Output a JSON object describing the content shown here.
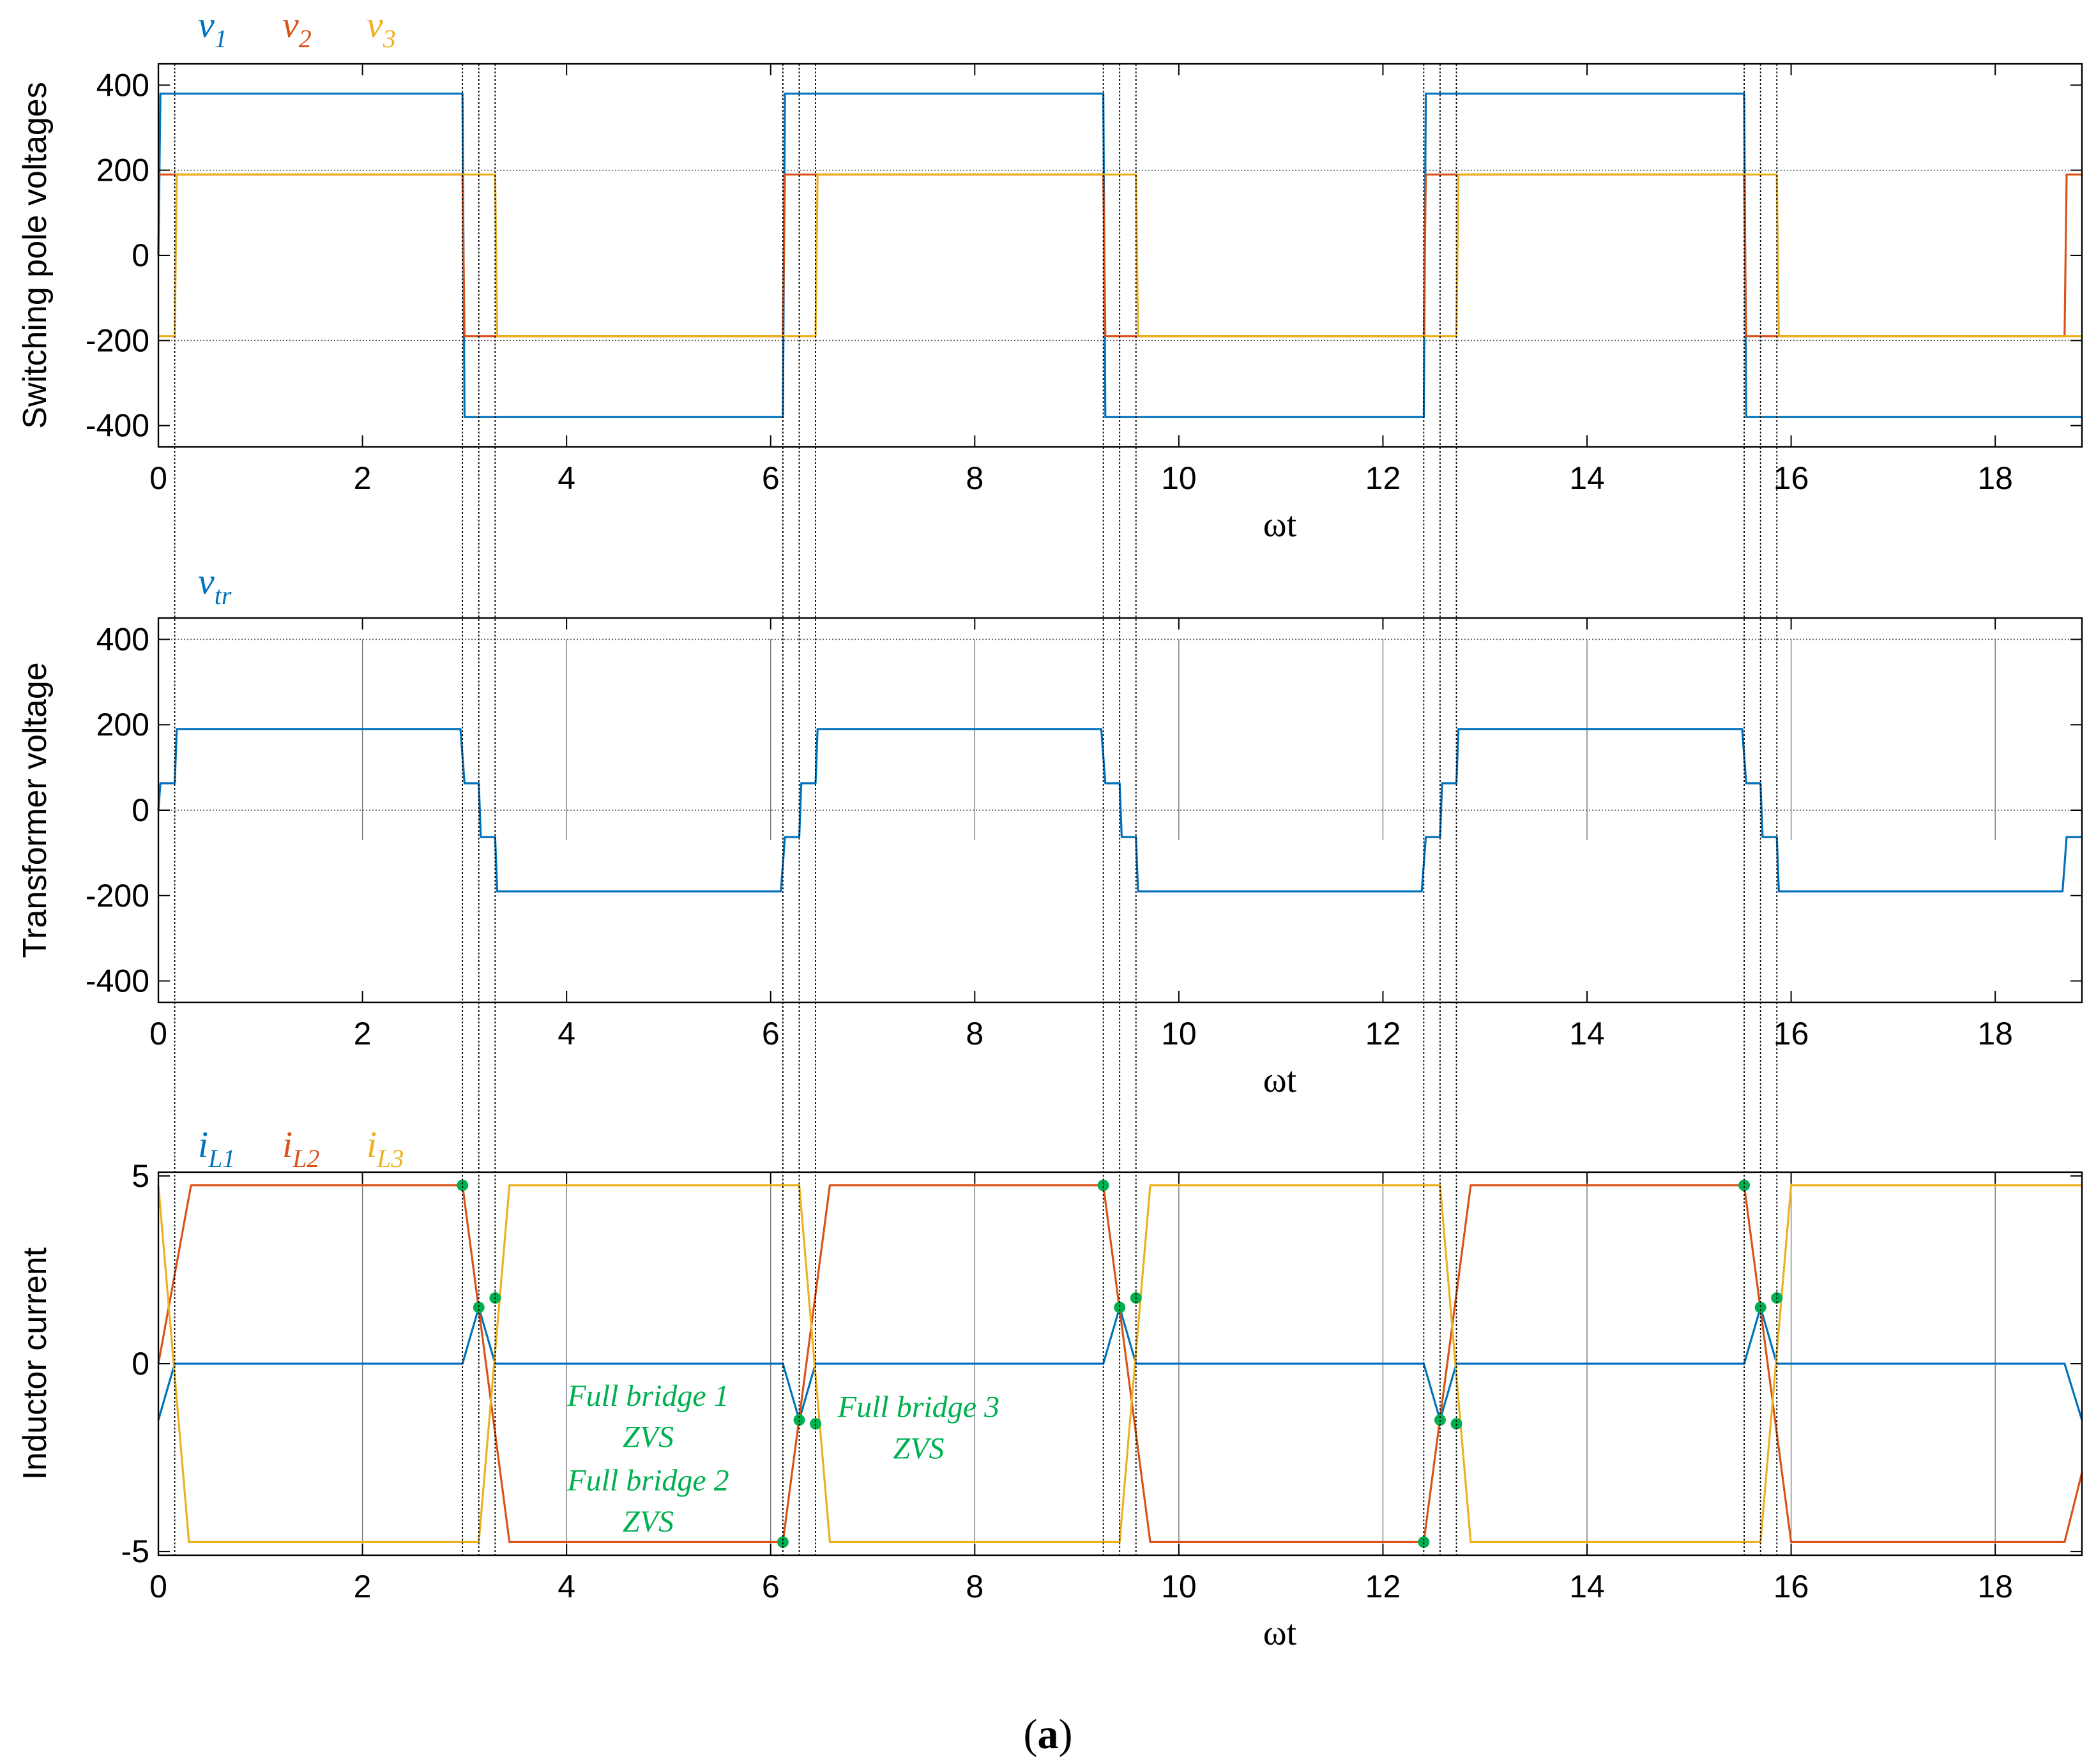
{
  "colors": {
    "c1": "#0072bd",
    "c2": "#d95319",
    "c3": "#edb120",
    "zvs": "#00b050",
    "axis": "#000000"
  },
  "caption": {
    "open": "(",
    "letter": "a",
    "close": ")"
  },
  "switching_times": [
    0.16,
    2.98,
    3.14,
    3.3,
    6.12,
    6.28,
    6.44,
    9.26,
    9.42,
    9.58,
    12.4,
    12.56,
    12.72,
    15.54,
    15.7,
    15.86
  ],
  "chart_data": [
    {
      "id": "poles",
      "type": "line",
      "ylabel": "Switching pole voltages",
      "xlabel": "ωt",
      "xlim": [
        0,
        18.85
      ],
      "ylim": [
        -450,
        450
      ],
      "xticks": [
        0,
        2,
        4,
        6,
        8,
        10,
        12,
        14,
        16,
        18
      ],
      "yticks": [
        -400,
        -200,
        0,
        200,
        400
      ],
      "ytick_labels": [
        "-400",
        "-200",
        "0",
        "200",
        "400"
      ],
      "grid_y": [
        -200,
        200
      ],
      "legend": [
        {
          "base": "v",
          "sub": "1",
          "color": "#0072bd"
        },
        {
          "base": "v",
          "sub": "2",
          "color": "#d95319"
        },
        {
          "base": "v",
          "sub": "3",
          "color": "#edb120"
        }
      ],
      "series": [
        {
          "name": "v1",
          "color": "#0072bd",
          "x": [
            0,
            0.02,
            2.98,
            3.0,
            6.12,
            6.14,
            9.26,
            9.28,
            12.4,
            12.42,
            15.54,
            15.56,
            18.85
          ],
          "y": [
            0,
            380,
            380,
            -380,
            -380,
            380,
            380,
            -380,
            -380,
            380,
            380,
            -380,
            -380
          ]
        },
        {
          "name": "v2",
          "color": "#d95319",
          "x": [
            0,
            0.01,
            2.98,
            3.0,
            6.12,
            6.14,
            9.26,
            9.28,
            12.4,
            12.42,
            15.54,
            15.56,
            18.68,
            18.7,
            18.85
          ],
          "y": [
            190,
            190,
            190,
            -190,
            -190,
            190,
            190,
            -190,
            -190,
            190,
            190,
            -190,
            -190,
            190,
            190
          ]
        },
        {
          "name": "v3",
          "color": "#edb120",
          "x": [
            0,
            0.16,
            0.18,
            3.3,
            3.32,
            6.44,
            6.46,
            9.58,
            9.6,
            12.72,
            12.74,
            15.86,
            15.88,
            18.85
          ],
          "y": [
            -190,
            -190,
            190,
            190,
            -190,
            -190,
            190,
            190,
            -190,
            -190,
            190,
            190,
            -190,
            -190
          ]
        }
      ]
    },
    {
      "id": "transformer",
      "type": "line",
      "ylabel": "Transformer voltage",
      "xlabel": "ωt",
      "xlim": [
        0,
        18.85
      ],
      "ylim": [
        -450,
        450
      ],
      "xticks": [
        0,
        2,
        4,
        6,
        8,
        10,
        12,
        14,
        16,
        18
      ],
      "yticks": [
        -400,
        -200,
        0,
        200,
        400
      ],
      "ytick_labels": [
        "-400",
        "-200",
        "0",
        "200",
        "400"
      ],
      "grid_y": [
        0,
        400
      ],
      "legend": [
        {
          "base": "v",
          "sub": "tr",
          "color": "#0072bd"
        }
      ],
      "series": [
        {
          "name": "vtr",
          "color": "#0072bd",
          "x": [
            0,
            0.02,
            0.16,
            0.18,
            2.96,
            3.0,
            3.14,
            3.16,
            3.3,
            3.32,
            6.1,
            6.14,
            6.28,
            6.3,
            6.44,
            6.46,
            9.24,
            9.28,
            9.42,
            9.44,
            9.58,
            9.6,
            12.38,
            12.42,
            12.56,
            12.58,
            12.72,
            12.74,
            15.52,
            15.56,
            15.7,
            15.72,
            15.86,
            15.88,
            18.66,
            18.7,
            18.85
          ],
          "y": [
            0,
            63,
            63,
            190,
            190,
            63,
            63,
            -63,
            -63,
            -190,
            -190,
            -63,
            -63,
            63,
            63,
            190,
            190,
            63,
            63,
            -63,
            -63,
            -190,
            -190,
            -63,
            -63,
            63,
            63,
            190,
            190,
            63,
            63,
            -63,
            -63,
            -190,
            -190,
            -63,
            -63
          ]
        }
      ]
    },
    {
      "id": "currents",
      "type": "line",
      "ylabel": "Inductor current",
      "xlabel": "ωt",
      "xlim": [
        0,
        18.85
      ],
      "ylim": [
        -5.1,
        5.1
      ],
      "xticks": [
        0,
        2,
        4,
        6,
        8,
        10,
        12,
        14,
        16,
        18
      ],
      "yticks": [
        -5,
        0,
        5
      ],
      "ytick_labels": [
        "-5",
        "0",
        "5"
      ],
      "grid_y": [],
      "legend": [
        {
          "base": "i",
          "sub": "L1",
          "color": "#0072bd"
        },
        {
          "base": "i",
          "sub": "L2",
          "color": "#d95319"
        },
        {
          "base": "i",
          "sub": "L3",
          "color": "#edb120"
        }
      ],
      "series": [
        {
          "name": "iL1",
          "color": "#0072bd",
          "x": [
            0,
            0.16,
            0.32,
            2.98,
            3.14,
            3.3,
            6.12,
            6.28,
            6.44,
            9.26,
            9.42,
            9.58,
            12.4,
            12.56,
            12.72,
            15.54,
            15.7,
            15.86,
            18.68,
            18.85
          ],
          "y": [
            -1.5,
            0,
            0,
            0,
            1.5,
            0,
            0,
            -1.5,
            0,
            0,
            1.5,
            0,
            0,
            -1.5,
            0,
            0,
            1.5,
            0,
            0,
            -1.5
          ]
        },
        {
          "name": "iL2",
          "color": "#d95319",
          "x": [
            0,
            0.32,
            2.98,
            3.44,
            6.12,
            6.58,
            9.26,
            9.72,
            12.4,
            12.86,
            15.54,
            16.0,
            18.68,
            18.85
          ],
          "y": [
            0,
            4.75,
            4.75,
            -4.75,
            -4.75,
            4.75,
            4.75,
            -4.75,
            -4.75,
            4.75,
            4.75,
            -4.75,
            -4.75,
            -2.9
          ]
        },
        {
          "name": "iL3",
          "color": "#edb120",
          "x": [
            0,
            0.3,
            3.14,
            3.44,
            6.28,
            6.58,
            9.42,
            9.72,
            12.56,
            12.86,
            15.7,
            16.0,
            18.85
          ],
          "y": [
            4.75,
            -4.75,
            -4.75,
            4.75,
            4.75,
            -4.75,
            -4.75,
            4.75,
            4.75,
            -4.75,
            -4.75,
            4.75,
            4.75
          ]
        }
      ],
      "zvs_points": [
        {
          "x": 2.98,
          "y": 4.75
        },
        {
          "x": 3.14,
          "y": 1.5
        },
        {
          "x": 3.3,
          "y": 1.75
        },
        {
          "x": 6.12,
          "y": -4.75
        },
        {
          "x": 6.28,
          "y": -1.5
        },
        {
          "x": 6.44,
          "y": -1.6
        },
        {
          "x": 9.26,
          "y": 4.75
        },
        {
          "x": 9.42,
          "y": 1.5
        },
        {
          "x": 9.58,
          "y": 1.75
        },
        {
          "x": 12.4,
          "y": -4.75
        },
        {
          "x": 12.56,
          "y": -1.5
        },
        {
          "x": 12.72,
          "y": -1.6
        },
        {
          "x": 15.54,
          "y": 4.75
        },
        {
          "x": 15.7,
          "y": 1.5
        },
        {
          "x": 15.86,
          "y": 1.75
        }
      ],
      "annotations": [
        {
          "text": "Full bridge 1",
          "x": 4.8,
          "y": -0.85
        },
        {
          "text": "ZVS",
          "x": 4.8,
          "y": -1.95
        },
        {
          "text": "Full bridge 2",
          "x": 4.8,
          "y": -3.1
        },
        {
          "text": "ZVS",
          "x": 4.8,
          "y": -4.2
        },
        {
          "text": "Full bridge 3",
          "x": 7.45,
          "y": -1.15
        },
        {
          "text": "ZVS",
          "x": 7.45,
          "y": -2.25
        }
      ]
    }
  ]
}
